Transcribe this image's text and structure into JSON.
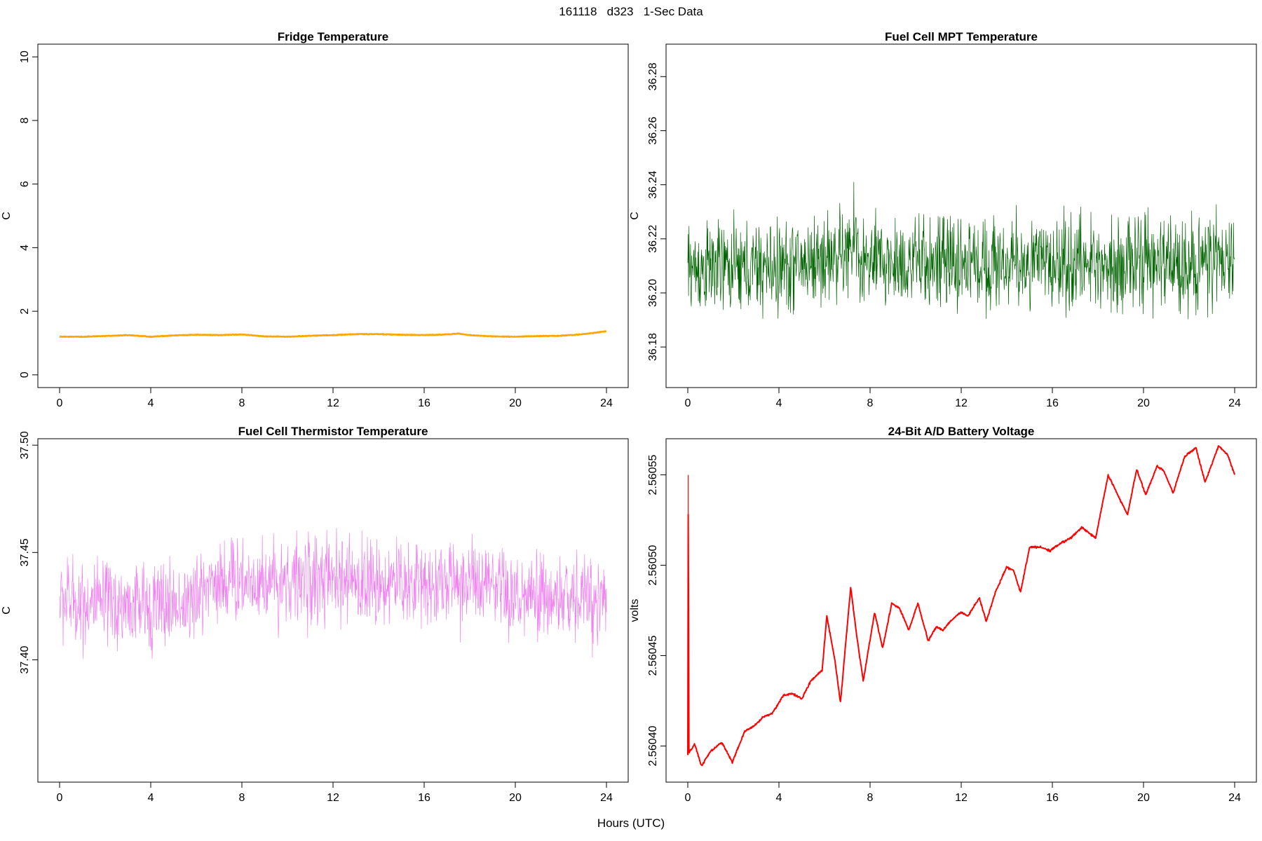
{
  "figure": {
    "title": "161118   d323   1-Sec Data",
    "xlabel": "Hours (UTC)"
  },
  "chart_data": [
    {
      "type": "line",
      "title": "Fridge Temperature",
      "xlabel": "Hours (UTC)",
      "ylabel": "C",
      "color": "#FFA500",
      "xlim": [
        0,
        24
      ],
      "ylim": [
        -0.4,
        10.4
      ],
      "xticks": [
        0,
        4,
        8,
        12,
        16,
        20,
        24
      ],
      "yticks": [
        "0",
        "2",
        "4",
        "6",
        "8",
        "10"
      ],
      "noise": 0.02,
      "x": [
        0,
        1,
        2,
        3,
        4,
        5,
        6,
        7,
        8,
        9,
        10,
        11,
        12,
        13,
        14,
        15,
        16,
        17,
        17.5,
        18,
        19,
        20,
        21,
        22,
        23,
        24
      ],
      "y": [
        1.2,
        1.2,
        1.22,
        1.25,
        1.2,
        1.24,
        1.26,
        1.25,
        1.27,
        1.21,
        1.2,
        1.23,
        1.25,
        1.28,
        1.28,
        1.26,
        1.25,
        1.27,
        1.3,
        1.25,
        1.21,
        1.2,
        1.22,
        1.23,
        1.28,
        1.37
      ]
    },
    {
      "type": "line",
      "title": "Fuel Cell MPT Temperature",
      "xlabel": "Hours (UTC)",
      "ylabel": "C",
      "color": "#006400",
      "xlim": [
        0,
        24
      ],
      "ylim": [
        36.165,
        36.292
      ],
      "xticks": [
        0,
        4,
        8,
        12,
        16,
        20,
        24
      ],
      "yticks": [
        "36.18",
        "36.20",
        "36.22",
        "36.24",
        "36.26",
        "36.28"
      ],
      "noise": 0.025,
      "x": [
        0,
        4,
        7.2,
        7.35,
        7.5,
        12,
        16,
        20,
        24
      ],
      "y": [
        36.209,
        36.209,
        36.215,
        36.225,
        36.211,
        36.211,
        36.211,
        36.211,
        36.211
      ]
    },
    {
      "type": "line",
      "title": "Fuel Cell Thermistor Temperature",
      "xlabel": "Hours (UTC)",
      "ylabel": "C",
      "color": "#EE82EE",
      "xlim": [
        0,
        24
      ],
      "ylim": [
        37.343,
        37.503
      ],
      "xticks": [
        0,
        4,
        8,
        12,
        16,
        20,
        24
      ],
      "yticks": [
        "37.40",
        "37.45",
        "37.50"
      ],
      "noise": 0.03,
      "x": [
        0,
        2,
        4,
        6,
        6.5,
        10,
        14,
        18,
        20,
        24
      ],
      "y": [
        37.428,
        37.425,
        37.425,
        37.427,
        37.437,
        37.437,
        37.436,
        37.436,
        37.428,
        37.429
      ]
    },
    {
      "type": "line",
      "title": "24-Bit A/D Battery Voltage",
      "xlabel": "Hours (UTC)",
      "ylabel": "volts",
      "color": "#FF0000",
      "xlim": [
        0,
        24
      ],
      "ylim": [
        2.56038,
        2.56057
      ],
      "xticks": [
        0,
        4,
        8,
        12,
        16,
        20,
        24
      ],
      "yticks": [
        "2.56040",
        "2.56045",
        "2.56050",
        "2.56055"
      ],
      "noise": 8e-07,
      "x": [
        0,
        0.02,
        0.05,
        0.3,
        0.6,
        1.0,
        1.5,
        1.95,
        2.5,
        3.0,
        3.3,
        3.7,
        4.2,
        4.6,
        5.0,
        5.4,
        5.9,
        6.1,
        6.45,
        6.7,
        7.15,
        7.4,
        7.7,
        8.2,
        8.55,
        8.95,
        9.3,
        9.7,
        10.1,
        10.55,
        10.9,
        11.2,
        11.6,
        12.0,
        12.3,
        12.8,
        13.1,
        13.5,
        14.0,
        14.3,
        14.6,
        15.0,
        15.5,
        15.9,
        16.2,
        16.8,
        17.3,
        17.9,
        18.45,
        18.9,
        19.3,
        19.7,
        20.1,
        20.6,
        20.9,
        21.3,
        21.8,
        22.3,
        22.7,
        23.3,
        23.7,
        24.0
      ],
      "y": [
        2.560395,
        2.56055,
        2.560396,
        2.560401,
        2.560389,
        2.560397,
        2.560402,
        2.560391,
        2.560408,
        2.560412,
        2.560416,
        2.560418,
        2.560428,
        2.560429,
        2.560426,
        2.560436,
        2.560442,
        2.560472,
        2.560448,
        2.560424,
        2.560488,
        2.560462,
        2.560436,
        2.560474,
        2.560454,
        2.560479,
        2.560476,
        2.560464,
        2.560479,
        2.560458,
        2.560466,
        2.560464,
        2.56047,
        2.560474,
        2.560472,
        2.560482,
        2.560469,
        2.560485,
        2.560499,
        2.560497,
        2.560485,
        2.56051,
        2.56051,
        2.560508,
        2.560511,
        2.560515,
        2.560521,
        2.560515,
        2.56055,
        2.560538,
        2.560528,
        2.560553,
        2.560539,
        2.560555,
        2.560552,
        2.56054,
        2.56056,
        2.560565,
        2.560546,
        2.560566,
        2.560561,
        2.56055
      ]
    }
  ]
}
